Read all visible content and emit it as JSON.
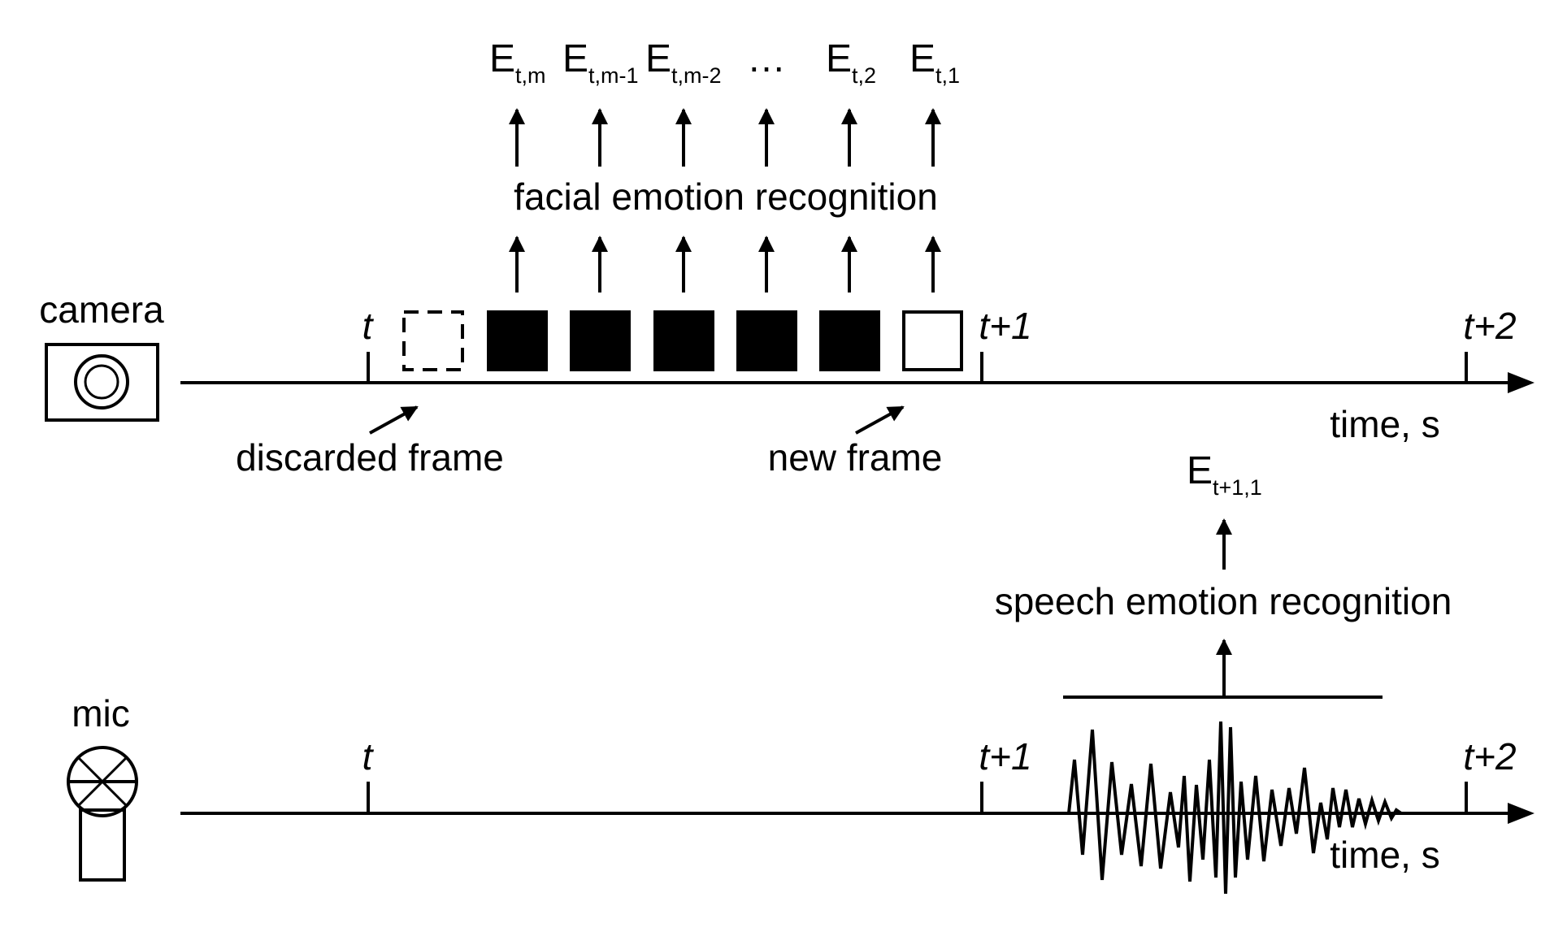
{
  "camera": {
    "label": "camera",
    "icon": "camera-icon",
    "ticks": [
      "t",
      "t+1",
      "t+2"
    ],
    "axis_label": "time, s",
    "process_label": "facial emotion recognition",
    "discarded_label": "discarded frame",
    "new_label": "new frame",
    "outputs": [
      {
        "base": "E",
        "sub": "t,m"
      },
      {
        "base": "E",
        "sub": "t,m-1"
      },
      {
        "base": "E",
        "sub": "t,m-2"
      },
      {
        "base": "…",
        "sub": ""
      },
      {
        "base": "E",
        "sub": "t,2"
      },
      {
        "base": "E",
        "sub": "t,1"
      }
    ]
  },
  "mic": {
    "label": "mic",
    "icon": "microphone-icon",
    "ticks": [
      "t",
      "t+1",
      "t+2"
    ],
    "axis_label": "time, s",
    "process_label": "speech emotion recognition",
    "output": {
      "base": "E",
      "sub": "t+1,1"
    }
  },
  "colors": {
    "ink": "#000000",
    "background": "#ffffff"
  }
}
